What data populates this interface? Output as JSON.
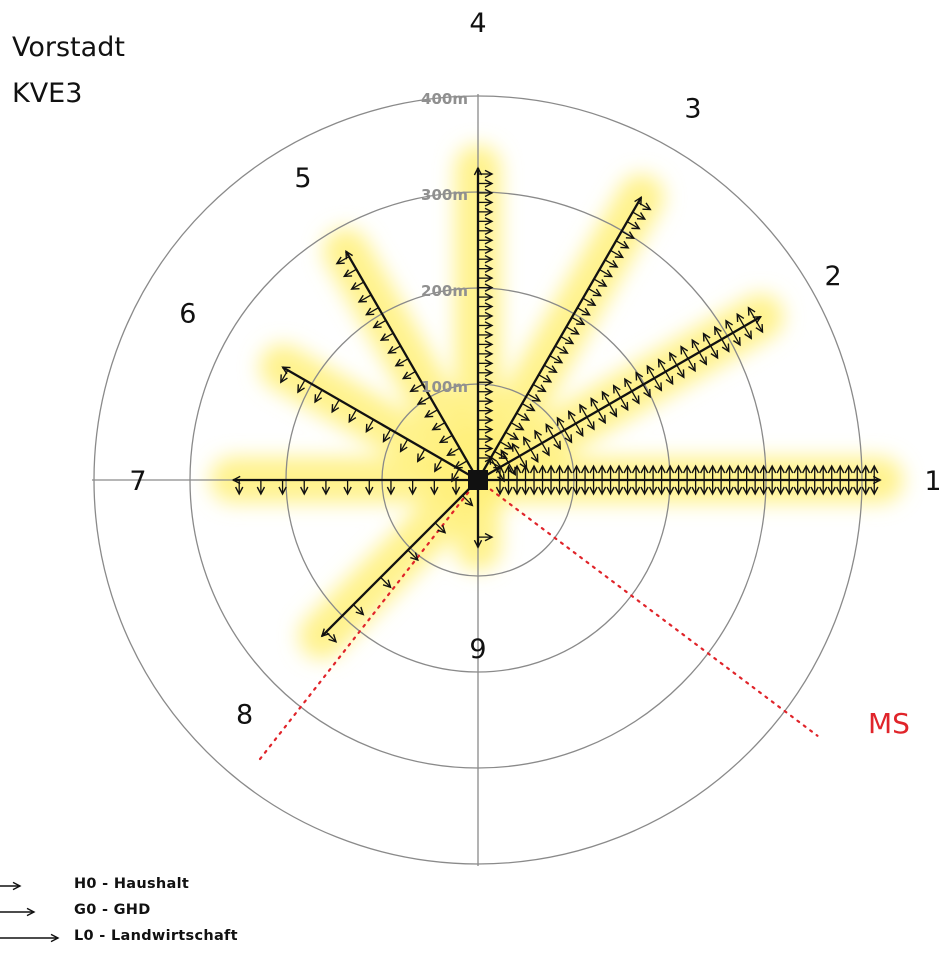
{
  "title": {
    "line1": "Vorstadt",
    "line2": "KVE3"
  },
  "ring_labels": [
    "100m",
    "200m",
    "300m",
    "400m"
  ],
  "feeders": [
    {
      "label": "1",
      "length_m": 419,
      "side": "both",
      "symbols": 45
    },
    {
      "label": "2",
      "length_m": 340,
      "side": "both",
      "symbols": 24
    },
    {
      "label": "3",
      "length_m": 340,
      "side": "right",
      "symbols": 28
    },
    {
      "label": "4",
      "length_m": 325,
      "side": "right",
      "symbols": 31
    },
    {
      "label": "5",
      "length_m": 275,
      "side": "left",
      "symbols": 17
    },
    {
      "label": "6",
      "length_m": 235,
      "side": "left",
      "symbols": 11
    },
    {
      "label": "7",
      "length_m": 255,
      "side": "left",
      "symbols": 11
    },
    {
      "label": "8",
      "length_m": 230,
      "side": "left",
      "symbols": 6
    },
    {
      "label": "9",
      "length_m": 70,
      "side": "left",
      "symbols": 1
    }
  ],
  "ms_label": "MS",
  "colors": {
    "glow": "#fff07a",
    "line": "#111111",
    "grid": "#8a8a8a",
    "ms": "#e0242a"
  },
  "legend": [
    {
      "label": "H0 - Haushalt",
      "arrow": "short"
    },
    {
      "label": "G0 - GHD",
      "arrow": "medium"
    },
    {
      "label": "L0 - Landwirtschaft",
      "arrow": "long"
    }
  ]
}
